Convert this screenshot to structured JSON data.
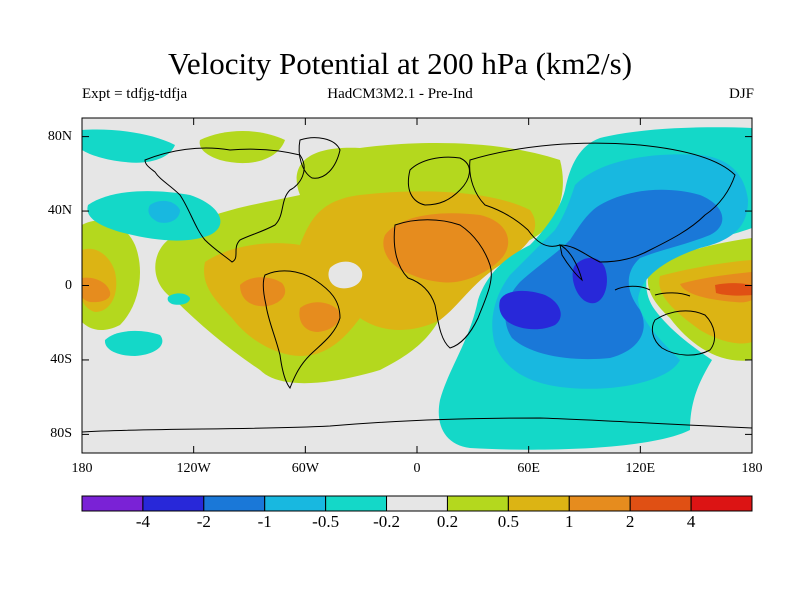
{
  "title": "Velocity Potential at 200 hPa (km2/s)",
  "subtitle_left": "Expt = tdfjg-tdfja",
  "subtitle_center": "HadCM3M2.1 - Pre-Ind",
  "subtitle_right": "DJF",
  "map": {
    "projection": "cylindrical-equidistant",
    "lon_range": [
      -180,
      180
    ],
    "lat_range": [
      -90,
      90
    ],
    "lat_ticks": [
      {
        "value": 80,
        "label": "80N"
      },
      {
        "value": 40,
        "label": "40N"
      },
      {
        "value": 0,
        "label": "0"
      },
      {
        "value": -40,
        "label": "40S"
      },
      {
        "value": -80,
        "label": "80S"
      }
    ],
    "lon_ticks": [
      {
        "value": -180,
        "label": "180"
      },
      {
        "value": -120,
        "label": "120W"
      },
      {
        "value": -60,
        "label": "60W"
      },
      {
        "value": 0,
        "label": "0"
      },
      {
        "value": 60,
        "label": "60E"
      },
      {
        "value": 120,
        "label": "120E"
      },
      {
        "value": 180,
        "label": "180"
      }
    ],
    "background_color": "#e6e6e6"
  },
  "colorbar": {
    "colors": [
      "#7a22d6",
      "#2828d9",
      "#1a78d8",
      "#18b8e0",
      "#14d8c8",
      "#e6e6e6",
      "#b4d81e",
      "#dcb414",
      "#e68c1e",
      "#e05014",
      "#dc1414"
    ],
    "labels": [
      "-4",
      "-2",
      "-1",
      "-0.5",
      "-0.2",
      "0.2",
      "0.5",
      "1",
      "2",
      "4"
    ]
  }
}
